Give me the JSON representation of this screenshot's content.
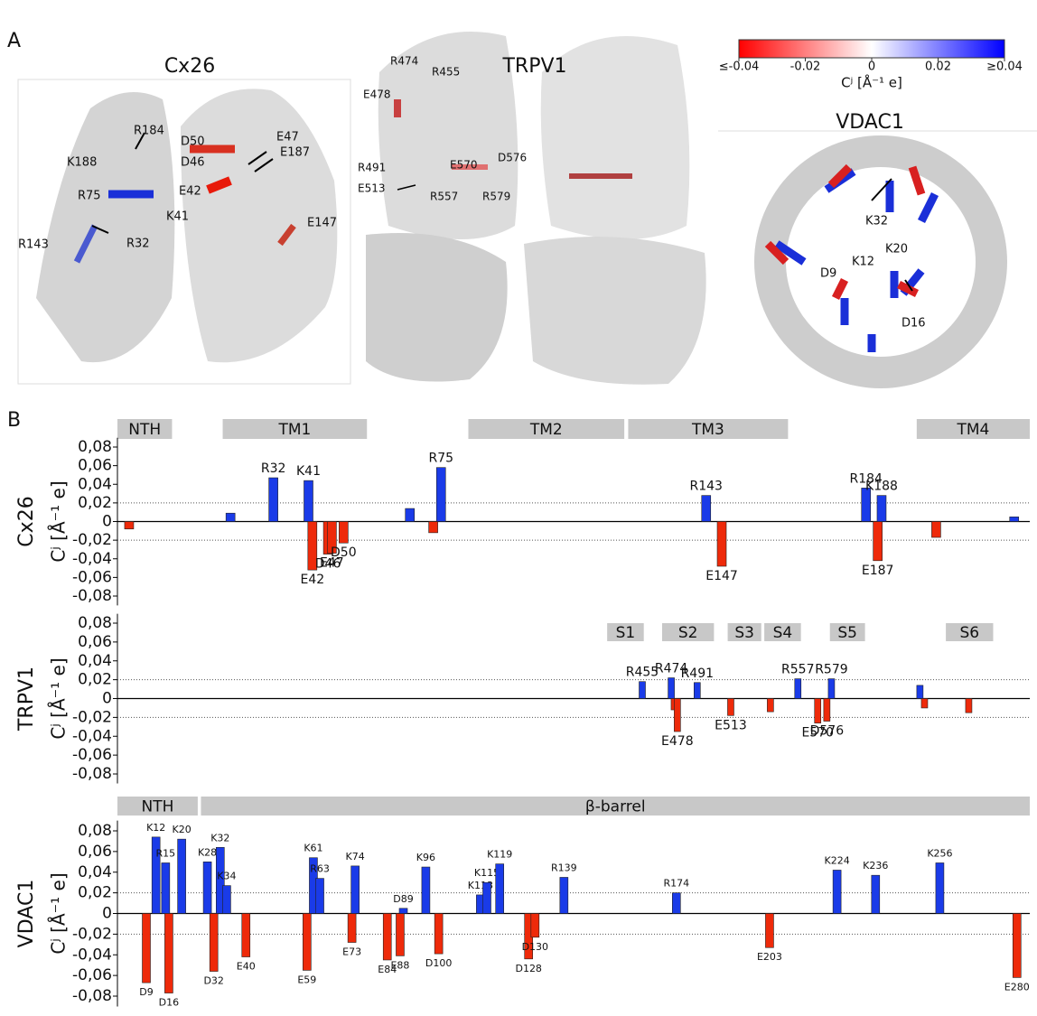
{
  "panel_a": {
    "label": "A",
    "cx26": {
      "title": "Cx26",
      "labels": [
        "R184",
        "K188",
        "R75",
        "K41",
        "R32",
        "R143",
        "D50",
        "E47",
        "D46",
        "E187",
        "E42",
        "E147"
      ]
    },
    "trpv1": {
      "title": "TRPV1",
      "labels": [
        "R474",
        "R455",
        "E478",
        "R491",
        "E513",
        "E570",
        "D576",
        "R557",
        "R579"
      ]
    },
    "vdac1": {
      "title": "VDAC1",
      "labels": [
        "K32",
        "K20",
        "K12",
        "D9",
        "D16"
      ]
    },
    "colorbar": {
      "lim": [
        -0.04,
        0.04
      ],
      "colors": [
        "#ff0000",
        "#ffffff",
        "#0000ff"
      ],
      "label": "Cʲ [Å⁻¹ e]",
      "ticks": [
        {
          "value": -0.04,
          "label": "≤-0.04"
        },
        -0.02,
        0,
        0.02,
        {
          "value": 0.04,
          "label": "≥0.04"
        }
      ]
    }
  },
  "panel_b": {
    "label": "B"
  },
  "chart_data": [
    {
      "type": "bar",
      "title": "Cx26",
      "ylabel": "Cʲ [Å⁻¹ e]",
      "positive_color": "#1a3be8",
      "negative_color": "#ee2a0a",
      "xlim": [
        -8,
        226
      ],
      "ylim": [
        -0.09,
        0.09
      ],
      "yticks": [
        {
          "value": -0.08,
          "label": "-0,08"
        },
        {
          "value": -0.06,
          "label": "-0,06"
        },
        {
          "value": -0.04,
          "label": "-0,04"
        },
        {
          "value": -0.02,
          "label": "-0,02"
        },
        0,
        {
          "value": 0.02,
          "label": "0,02"
        },
        {
          "value": 0.04,
          "label": "0,04"
        },
        {
          "value": 0.06,
          "label": "0,06"
        },
        {
          "value": 0.08,
          "label": "0,08"
        }
      ],
      "reference_lines": [
        -0.02,
        0.02
      ],
      "regions": [
        {
          "name": "NTH",
          "x": [
            -8,
            6
          ]
        },
        {
          "name": "TM1",
          "x": [
            19,
            56
          ]
        },
        {
          "name": "TM2",
          "x": [
            82,
            122
          ]
        },
        {
          "name": "TM3",
          "x": [
            123,
            164
          ]
        },
        {
          "name": "TM4",
          "x": [
            197,
            226
          ]
        }
      ],
      "x": [
        -5,
        21,
        32,
        41,
        42,
        46,
        47,
        50,
        67,
        73,
        75,
        143,
        147,
        184,
        187,
        188,
        202,
        222
      ],
      "categories": [
        null,
        null,
        "R32",
        "K41",
        "E42",
        "D46",
        "E47",
        "D50",
        null,
        null,
        "R75",
        "R143",
        "E147",
        "R184",
        "E187",
        "K188",
        null,
        null
      ],
      "values": [
        -0.008,
        0.009,
        0.047,
        0.044,
        -0.052,
        -0.035,
        -0.034,
        -0.023,
        0.014,
        -0.012,
        0.058,
        0.028,
        -0.048,
        0.036,
        -0.042,
        0.028,
        -0.017,
        0.005
      ]
    },
    {
      "type": "bar",
      "title": "TRPV1",
      "ylabel": "Cʲ [Å⁻¹ e]",
      "positive_color": "#1a3be8",
      "negative_color": "#ee2a0a",
      "xlim": [
        111,
        709
      ],
      "ylim": [
        -0.09,
        0.09
      ],
      "yticks": [
        {
          "value": -0.08,
          "label": "-0,08"
        },
        {
          "value": -0.06,
          "label": "-0,06"
        },
        {
          "value": -0.04,
          "label": "-0,04"
        },
        {
          "value": -0.02,
          "label": "-0,02"
        },
        0,
        {
          "value": 0.02,
          "label": "0,02"
        },
        {
          "value": 0.04,
          "label": "0,04"
        },
        {
          "value": 0.06,
          "label": "0,06"
        },
        {
          "value": 0.08,
          "label": "0,08"
        }
      ],
      "reference_lines": [
        -0.02,
        0.02
      ],
      "regions": [
        {
          "name": "S1",
          "x": [
            432,
            456
          ]
        },
        {
          "name": "S2",
          "x": [
            468,
            502
          ]
        },
        {
          "name": "S3",
          "x": [
            511,
            533
          ]
        },
        {
          "name": "S4",
          "x": [
            535,
            559
          ]
        },
        {
          "name": "S5",
          "x": [
            578,
            601
          ]
        },
        {
          "name": "S6",
          "x": [
            654,
            685
          ]
        }
      ],
      "x": [
        455,
        474,
        476,
        478,
        491,
        513,
        539,
        557,
        570,
        576,
        579,
        637,
        640,
        669
      ],
      "categories": [
        "R455",
        "R474",
        null,
        "E478",
        "R491",
        "E513",
        null,
        "R557",
        "E570",
        "D576",
        "R579",
        null,
        null,
        null
      ],
      "values": [
        0.018,
        0.022,
        -0.012,
        -0.035,
        0.017,
        -0.018,
        -0.014,
        0.021,
        -0.026,
        -0.024,
        0.021,
        0.014,
        -0.01,
        -0.015
      ]
    },
    {
      "type": "bar",
      "title": "VDAC1",
      "ylabel": "Cʲ [Å⁻¹ e]",
      "positive_color": "#1a3be8",
      "negative_color": "#ee2a0a",
      "xlim": [
        0,
        284
      ],
      "ylim": [
        -0.09,
        0.09
      ],
      "yticks": [
        {
          "value": -0.08,
          "label": "-0,08"
        },
        {
          "value": -0.06,
          "label": "-0,06"
        },
        {
          "value": -0.04,
          "label": "-0,04"
        },
        {
          "value": -0.02,
          "label": "-0,02"
        },
        0,
        {
          "value": 0.02,
          "label": "0,02"
        },
        {
          "value": 0.04,
          "label": "0,04"
        },
        {
          "value": 0.06,
          "label": "0,06"
        },
        {
          "value": 0.08,
          "label": "0,08"
        }
      ],
      "reference_lines": [
        -0.02,
        0.02
      ],
      "regions": [
        {
          "name": "NTH",
          "x": [
            0,
            25
          ]
        },
        {
          "name": "β-barrel",
          "x": [
            26,
            284
          ]
        }
      ],
      "x": [
        9,
        12,
        15,
        16,
        20,
        28,
        30,
        32,
        34,
        40,
        59,
        61,
        63,
        73,
        74,
        84,
        88,
        89,
        96,
        100,
        113,
        115,
        119,
        128,
        130,
        139,
        174,
        203,
        224,
        236,
        256,
        280
      ],
      "categories": [
        "D9",
        "K12",
        "R15",
        "D16",
        "K20",
        "K28",
        "D32",
        "K32",
        "K34",
        "E40",
        "E59",
        "K61",
        "R63",
        "E73",
        "K74",
        "E84",
        "E88",
        "D89",
        "K96",
        "D100",
        "K113",
        "K115",
        "K119",
        "D128",
        "D130",
        "R139",
        "R174",
        "E203",
        "K224",
        "K236",
        "K256",
        "E280"
      ],
      "values": [
        -0.067,
        0.074,
        0.049,
        -0.077,
        0.072,
        0.05,
        -0.056,
        0.064,
        0.027,
        -0.042,
        -0.055,
        0.054,
        0.034,
        -0.028,
        0.046,
        -0.045,
        -0.041,
        0.005,
        0.045,
        -0.039,
        0.018,
        0.03,
        0.048,
        -0.044,
        -0.023,
        0.035,
        0.02,
        -0.033,
        0.042,
        0.037,
        0.049,
        -0.062
      ]
    }
  ]
}
